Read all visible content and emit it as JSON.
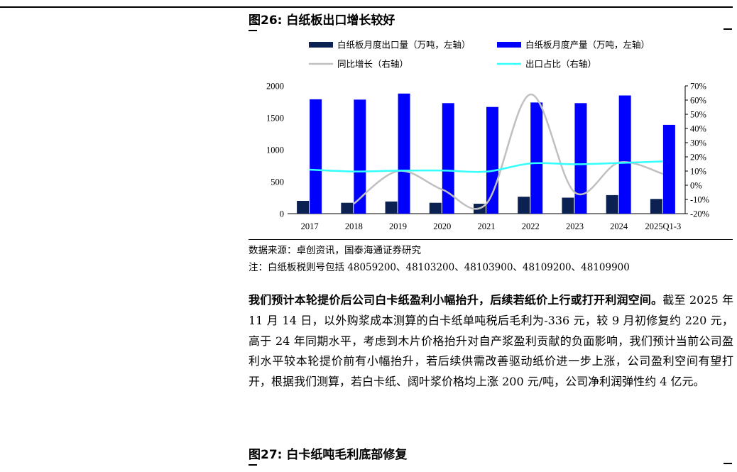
{
  "figure": {
    "title": "图26:  白纸板出口增长较好",
    "source": "数据来源：卓创资讯，国泰海通证券研究",
    "note": "注：白纸板税则号包括 48059200、48103200、48103900、48109200、48109900"
  },
  "paragraph": {
    "bold": "我们预计本轮提价后公司白卡纸盈利小幅抬升，后续若纸价上行或打开利润空间。",
    "body": "截至 2025 年 11 月 14 日，以外购浆成本测算的白卡纸单吨税后毛利为-336 元，较 9 月初修复约 220 元，高于 24 年同期水平，考虑到木片价格抬升对自产浆盈利贡献的负面影响，我们预计当前公司盈利水平较本轮提价前有小幅抬升，若后续供需改善驱动纸价进一步上涨，公司盈利空间有望打开，根据我们测算，若白卡纸、阔叶浆价格均上涨 200 元/吨，公司净利润弹性约 4 亿元。"
  },
  "next_figure": {
    "title": "图27:  白卡纸吨毛利底部修复"
  },
  "chart_data": {
    "type": "bar",
    "categories": [
      "2017",
      "2018",
      "2019",
      "2020",
      "2021",
      "2022",
      "2023",
      "2024",
      "2025Q1-3"
    ],
    "series": [
      {
        "name": "白纸板月度出口量（万吨，左轴）",
        "kind": "bar",
        "axis": "left",
        "color": "#0b2151",
        "values": [
          200,
          170,
          190,
          170,
          155,
          265,
          250,
          290,
          230
        ]
      },
      {
        "name": "白纸板月度产量（万吨，左轴）",
        "kind": "bar",
        "axis": "left",
        "color": "#0000ff",
        "values": [
          1790,
          1785,
          1880,
          1730,
          1670,
          1740,
          1730,
          1850,
          1390
        ]
      },
      {
        "name": "同比增长（右轴）",
        "kind": "line",
        "axis": "right",
        "color": "#c0c0c0",
        "values": [
          null,
          -13,
          10,
          -3,
          -13,
          64,
          -5,
          16,
          8
        ]
      },
      {
        "name": "出口占比（右轴）",
        "kind": "line",
        "axis": "right",
        "color": "#33ffff",
        "values": [
          11,
          9.7,
          10.3,
          10.4,
          9.6,
          15.4,
          14.8,
          15.7,
          16.8
        ]
      }
    ],
    "ylim_left": [
      0,
      2000
    ],
    "yticks_left": [
      "0",
      "500",
      "1000",
      "1500",
      "2000"
    ],
    "ylim_right": [
      -20,
      70
    ],
    "yticks_right": [
      "-20%",
      "-10%",
      "0%",
      "10%",
      "20%",
      "30%",
      "40%",
      "50%",
      "60%",
      "70%"
    ],
    "legend_placement": "top",
    "grid": false
  }
}
